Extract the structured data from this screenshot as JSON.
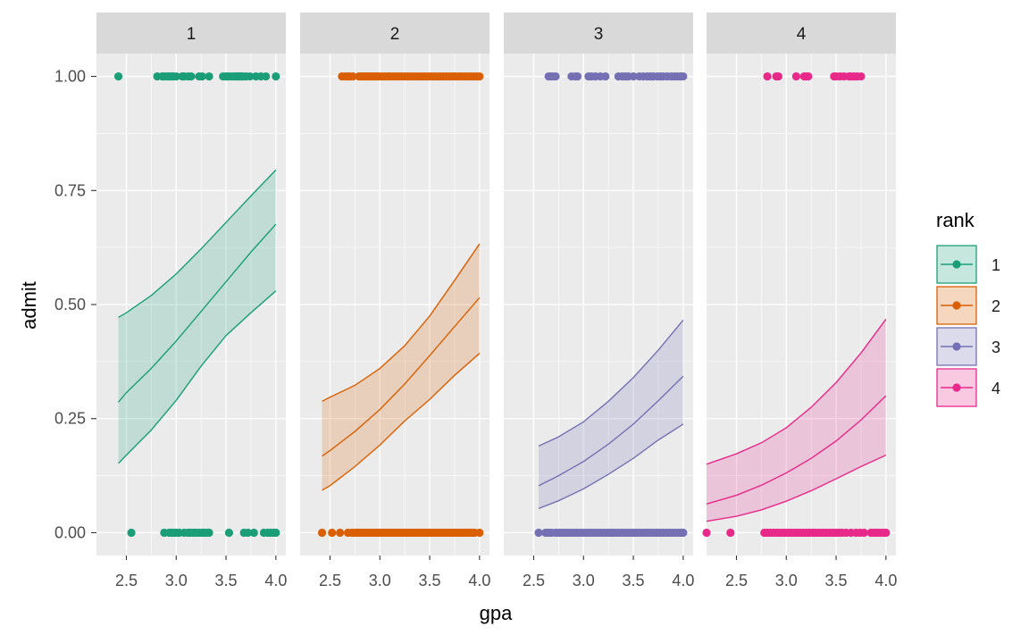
{
  "chart_data": {
    "type": "faceted line with ribbon and scatter",
    "xlabel": "gpa",
    "ylabel": "admit",
    "facet_variable": "rank",
    "x_ticks": [
      2.5,
      3.0,
      3.5,
      4.0
    ],
    "x_tick_labels": [
      "2.5",
      "3.0",
      "3.5",
      "4.0"
    ],
    "y_ticks": [
      0,
      0.25,
      0.5,
      0.75,
      1.0
    ],
    "y_tick_labels": [
      "0.00",
      "0.25",
      "0.50",
      "0.75",
      "1.00"
    ],
    "xlim": [
      2.2,
      4.1
    ],
    "ylim": [
      -0.05,
      1.05
    ],
    "legend": {
      "title": "rank",
      "position": "right",
      "entries": [
        "1",
        "2",
        "3",
        "4"
      ]
    },
    "facets": [
      {
        "label": "1",
        "color": "#1B9E77",
        "x": [
          2.42,
          2.5,
          2.75,
          3.0,
          3.25,
          3.5,
          3.75,
          4.0
        ],
        "fit": [
          0.286,
          0.307,
          0.36,
          0.42,
          0.485,
          0.55,
          0.615,
          0.676
        ],
        "lower": [
          0.152,
          0.17,
          0.225,
          0.29,
          0.365,
          0.432,
          0.482,
          0.53
        ],
        "upper": [
          0.472,
          0.482,
          0.52,
          0.567,
          0.622,
          0.68,
          0.738,
          0.795
        ],
        "points_admit_1": [
          2.42,
          2.81,
          2.86,
          2.88,
          2.91,
          2.93,
          2.95,
          2.97,
          3.0,
          3.06,
          3.08,
          3.12,
          3.15,
          3.23,
          3.26,
          3.33,
          3.47,
          3.5,
          3.52,
          3.55,
          3.58,
          3.6,
          3.62,
          3.64,
          3.65,
          3.67,
          3.7,
          3.74,
          3.8,
          3.85,
          3.9,
          4.0
        ],
        "points_admit_0": [
          2.55,
          2.88,
          2.93,
          2.95,
          2.97,
          3.0,
          3.03,
          3.08,
          3.12,
          3.14,
          3.17,
          3.19,
          3.2,
          3.23,
          3.26,
          3.28,
          3.31,
          3.33,
          3.53,
          3.68,
          3.72,
          3.78,
          3.88,
          3.92,
          3.95,
          3.98,
          4.0
        ]
      },
      {
        "label": "2",
        "color": "#D95F02",
        "x": [
          2.42,
          2.5,
          2.75,
          3.0,
          3.25,
          3.5,
          3.75,
          4.0
        ],
        "fit": [
          0.168,
          0.18,
          0.222,
          0.27,
          0.326,
          0.388,
          0.452,
          0.515
        ],
        "lower": [
          0.093,
          0.103,
          0.145,
          0.192,
          0.245,
          0.292,
          0.345,
          0.393
        ],
        "upper": [
          0.288,
          0.297,
          0.323,
          0.36,
          0.41,
          0.475,
          0.553,
          0.633
        ],
        "points_admit_1": [
          2.62,
          2.65,
          2.68,
          2.7,
          2.73,
          2.79,
          2.81,
          2.83,
          2.85,
          2.87,
          2.89,
          2.91,
          2.93,
          2.95,
          2.97,
          2.99,
          3.02,
          3.05,
          3.08,
          3.1,
          3.13,
          3.16,
          3.19,
          3.22,
          3.25,
          3.28,
          3.31,
          3.34,
          3.37,
          3.4,
          3.43,
          3.46,
          3.49,
          3.52,
          3.55,
          3.58,
          3.61,
          3.64,
          3.67,
          3.7,
          3.73,
          3.76,
          3.79,
          3.82,
          3.85,
          3.88,
          3.91,
          3.94,
          3.97,
          4.0
        ],
        "points_admit_0": [
          2.42,
          2.52,
          2.6,
          2.68,
          2.72,
          2.75,
          2.77,
          2.79,
          2.81,
          2.83,
          2.85,
          2.87,
          2.89,
          2.91,
          2.93,
          2.95,
          2.97,
          2.99,
          3.01,
          3.03,
          3.05,
          3.07,
          3.09,
          3.11,
          3.13,
          3.15,
          3.17,
          3.19,
          3.21,
          3.23,
          3.25,
          3.27,
          3.29,
          3.31,
          3.33,
          3.35,
          3.37,
          3.39,
          3.41,
          3.43,
          3.45,
          3.47,
          3.49,
          3.51,
          3.53,
          3.55,
          3.57,
          3.59,
          3.61,
          3.63,
          3.65,
          3.67,
          3.69,
          3.71,
          3.73,
          3.75,
          3.77,
          3.79,
          3.81,
          3.83,
          3.85,
          3.87,
          3.89,
          3.91,
          3.93,
          3.95,
          4.0
        ]
      },
      {
        "label": "3",
        "color": "#7570B3",
        "x": [
          2.55,
          2.75,
          3.0,
          3.25,
          3.5,
          3.75,
          4.0
        ],
        "fit": [
          0.103,
          0.125,
          0.156,
          0.194,
          0.238,
          0.289,
          0.343
        ],
        "lower": [
          0.053,
          0.07,
          0.096,
          0.128,
          0.163,
          0.203,
          0.238
        ],
        "upper": [
          0.19,
          0.21,
          0.243,
          0.288,
          0.34,
          0.4,
          0.466
        ],
        "points_admit_1": [
          2.65,
          2.67,
          2.69,
          2.72,
          2.88,
          2.92,
          2.94,
          3.05,
          3.08,
          3.12,
          3.17,
          3.22,
          3.35,
          3.39,
          3.42,
          3.45,
          3.5,
          3.56,
          3.6,
          3.64,
          3.67,
          3.7,
          3.74,
          3.77,
          3.8,
          3.84,
          3.88,
          3.91,
          3.94,
          3.97,
          4.0
        ],
        "points_admit_0": [
          2.55,
          2.62,
          2.65,
          2.68,
          2.72,
          2.75,
          2.78,
          2.81,
          2.84,
          2.87,
          2.9,
          2.93,
          2.96,
          2.99,
          3.02,
          3.05,
          3.08,
          3.11,
          3.14,
          3.17,
          3.2,
          3.23,
          3.26,
          3.29,
          3.32,
          3.35,
          3.38,
          3.41,
          3.44,
          3.47,
          3.5,
          3.53,
          3.56,
          3.59,
          3.62,
          3.65,
          3.68,
          3.71,
          3.74,
          3.77,
          3.8,
          3.83,
          3.86,
          3.89,
          3.92,
          3.95,
          3.98,
          4.0
        ]
      },
      {
        "label": "4",
        "color": "#E7298A",
        "x": [
          2.2,
          2.5,
          2.75,
          3.0,
          3.25,
          3.5,
          3.75,
          4.0
        ],
        "fit": [
          0.063,
          0.082,
          0.104,
          0.131,
          0.163,
          0.201,
          0.247,
          0.3
        ],
        "lower": [
          0.025,
          0.036,
          0.05,
          0.069,
          0.092,
          0.118,
          0.145,
          0.17
        ],
        "upper": [
          0.15,
          0.173,
          0.197,
          0.23,
          0.275,
          0.329,
          0.394,
          0.468
        ],
        "points_admit_1": [
          2.81,
          2.9,
          2.92,
          3.1,
          3.18,
          3.2,
          3.22,
          3.48,
          3.5,
          3.54,
          3.58,
          3.63,
          3.65,
          3.68,
          3.71,
          3.75
        ],
        "points_admit_0": [
          2.2,
          2.44,
          2.78,
          2.81,
          2.84,
          2.87,
          2.9,
          2.93,
          2.96,
          2.99,
          3.02,
          3.05,
          3.08,
          3.11,
          3.14,
          3.17,
          3.2,
          3.23,
          3.26,
          3.29,
          3.32,
          3.35,
          3.38,
          3.41,
          3.44,
          3.47,
          3.5,
          3.53,
          3.56,
          3.6,
          3.65,
          3.7,
          3.74,
          3.78,
          3.85,
          3.88,
          3.91,
          3.94,
          3.97,
          4.0
        ]
      }
    ]
  }
}
